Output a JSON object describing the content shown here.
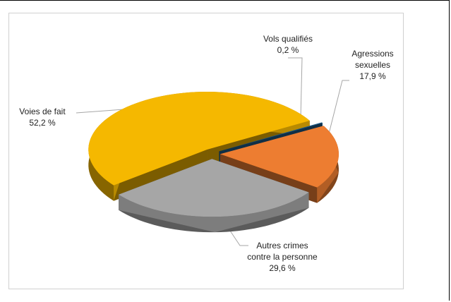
{
  "chart_data": {
    "type": "pie",
    "categories": [
      "Vols qualifiés",
      "Agressions sexuelles",
      "Autres crimes contre la personne",
      "Voies de fait"
    ],
    "values": [
      0.2,
      17.9,
      29.6,
      52.2
    ],
    "value_labels": [
      "0,2 %",
      "17,9 %",
      "29,6 %",
      "52,2 %"
    ],
    "colors": [
      "#1f5e8c",
      "#ed7d31",
      "#a6a6a6",
      "#f5b800"
    ]
  }
}
